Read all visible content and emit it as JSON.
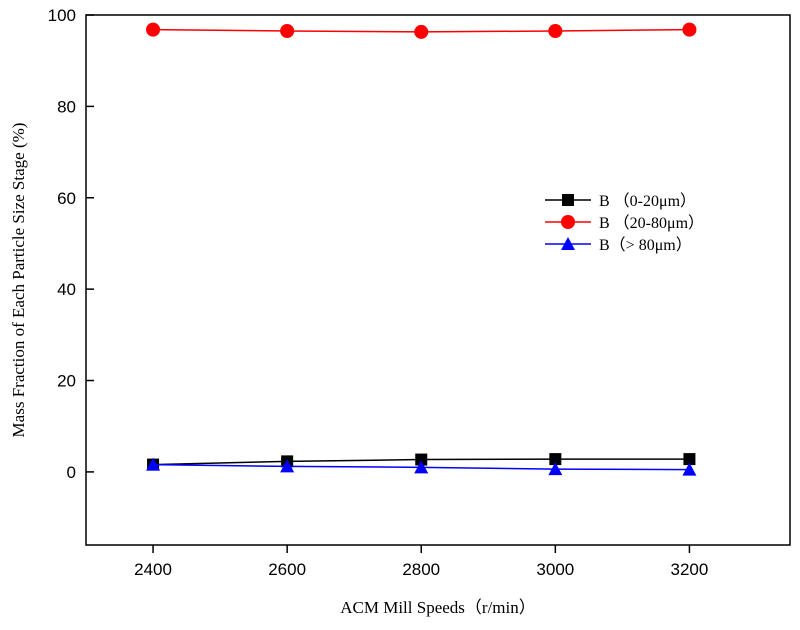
{
  "chart_data": {
    "type": "line",
    "xlabel": "ACM Mill Speeds（r/min）",
    "ylabel": "Mass Fraction of Each Particle Size Stage (%)",
    "x": [
      2400,
      2600,
      2800,
      3000,
      3200
    ],
    "x_ticks": [
      "2400",
      "2600",
      "2800",
      "3000",
      "3200"
    ],
    "xlim": [
      2300,
      3350
    ],
    "y_ticks": [
      "0",
      "20",
      "40",
      "60",
      "80",
      "100"
    ],
    "ylim": [
      -16,
      100
    ],
    "grid": false,
    "legend_position": "center-right",
    "series": [
      {
        "name": "B （0-20μm）",
        "values": [
          1.6,
          2.3,
          2.7,
          2.8,
          2.8
        ],
        "color": "#000000",
        "marker": "square"
      },
      {
        "name": "B （20-80μm）",
        "values": [
          96.8,
          96.5,
          96.3,
          96.5,
          96.8
        ],
        "color": "#ff0000",
        "marker": "circle"
      },
      {
        "name": "B（> 80μm）",
        "values": [
          1.6,
          1.2,
          1.0,
          0.6,
          0.5
        ],
        "color": "#0000ff",
        "marker": "triangle"
      }
    ]
  }
}
